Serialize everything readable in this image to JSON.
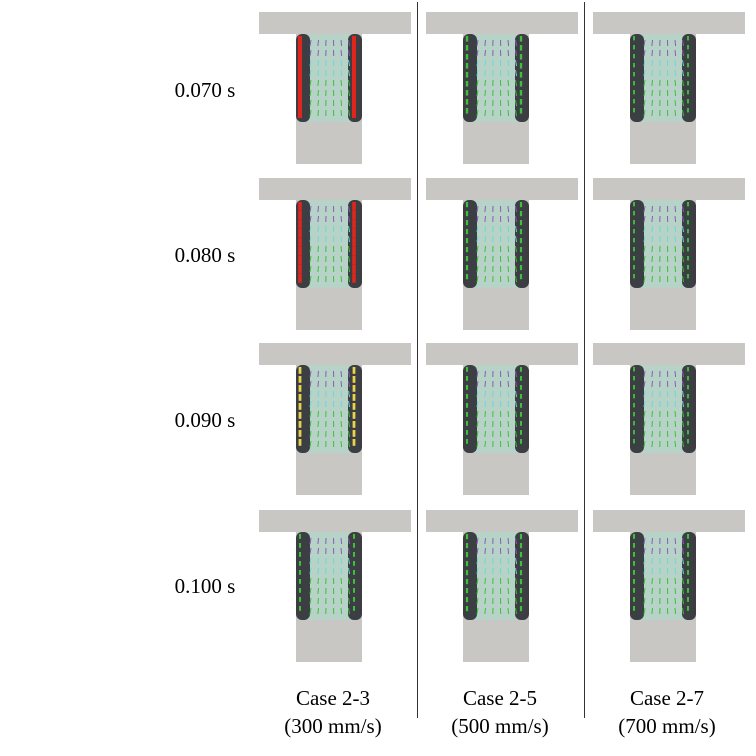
{
  "figure": {
    "time_labels": [
      "0.070 s",
      "0.080 s",
      "0.090 s",
      "0.100 s"
    ],
    "cases": [
      {
        "name": "Case 2-3",
        "speed": "(300 mm/s)"
      },
      {
        "name": "Case 2-5",
        "speed": "(500 mm/s)"
      },
      {
        "name": "Case 2-7",
        "speed": "(700 mm/s)"
      }
    ]
  },
  "colors": {
    "background_gray": "#c9c7c4",
    "dark_region": "#2e2e33",
    "vector_red": "#e0261c",
    "vector_yellow": "#e8d34a",
    "vector_green": "#3fbf3a",
    "vector_cyan": "#6fd6d0",
    "vector_blue": "#5566cc",
    "vector_purple": "#8a5bb8"
  }
}
